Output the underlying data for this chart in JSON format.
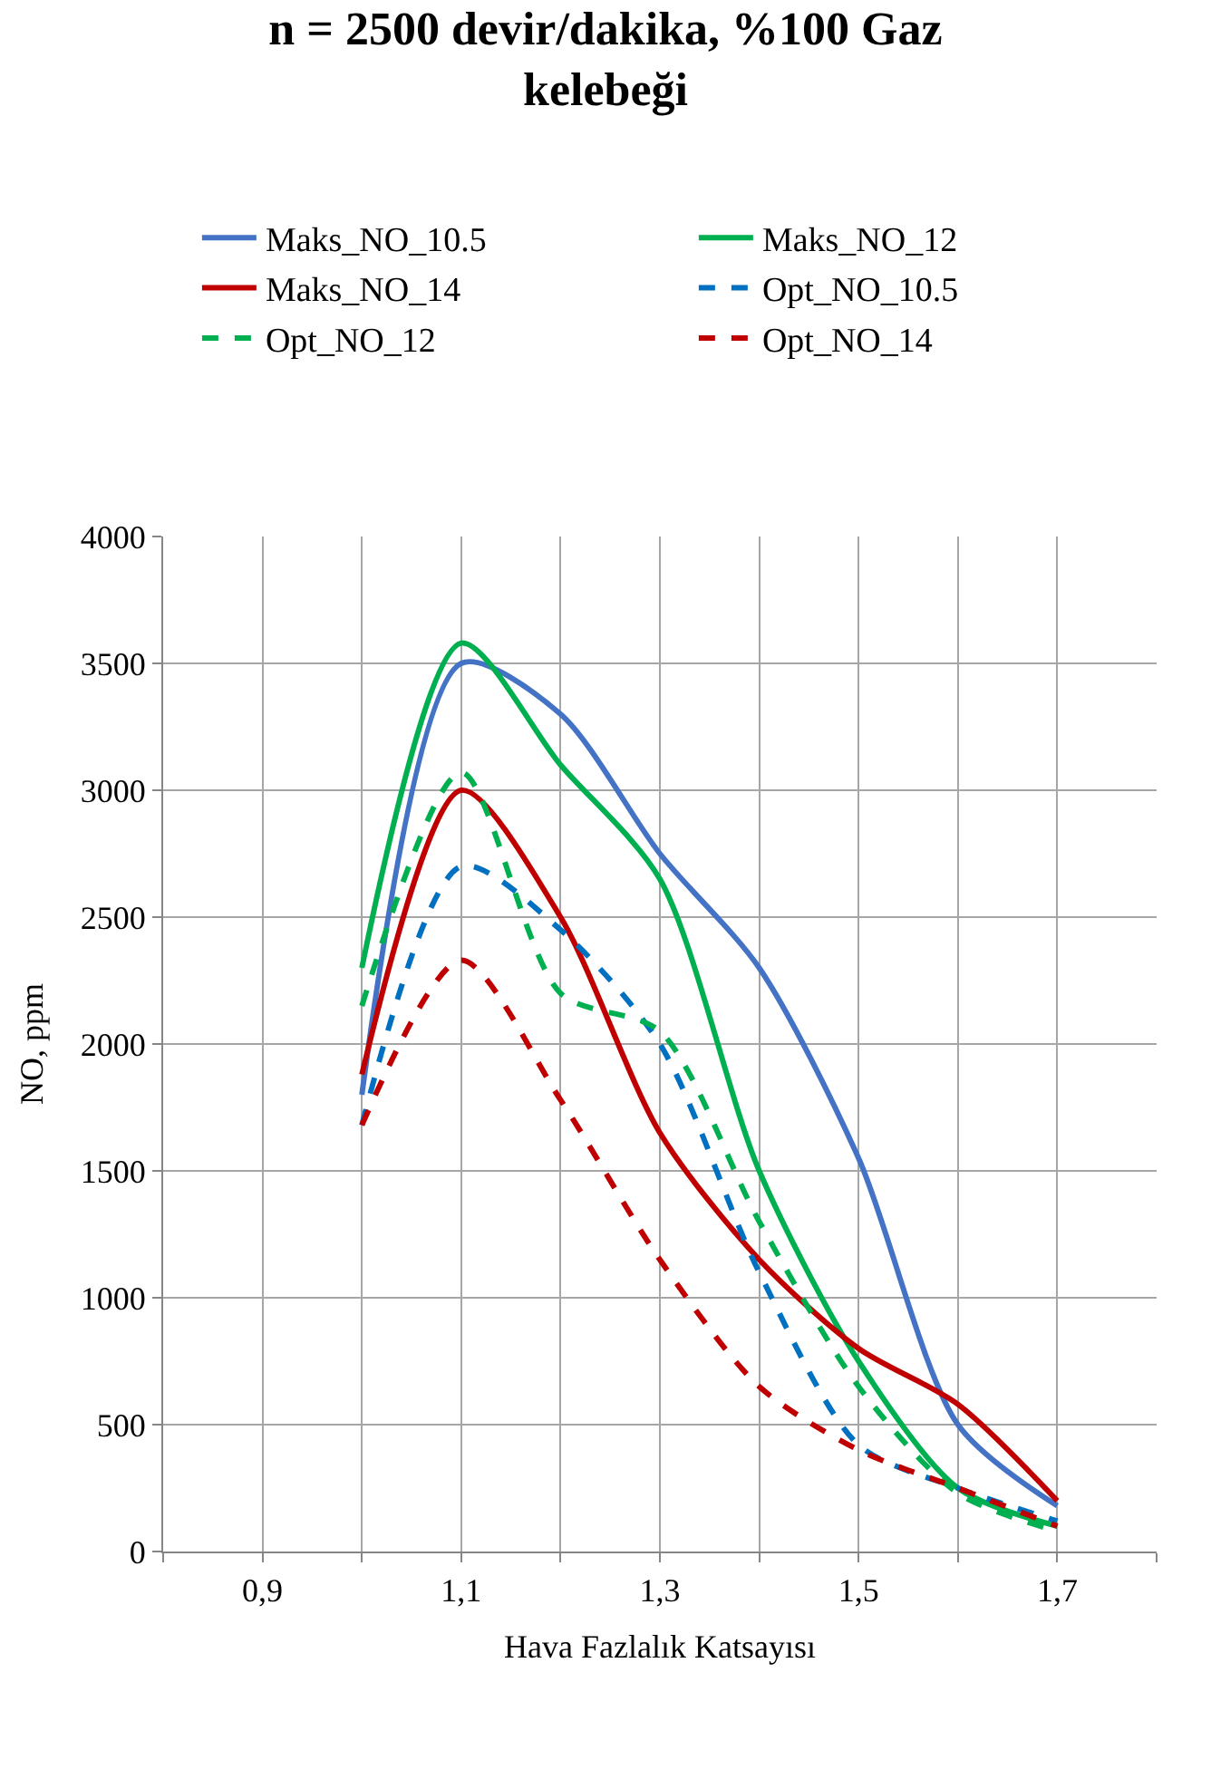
{
  "chart_data": {
    "type": "line",
    "title": "n = 2500 devir/dakika, %100 Gaz kelebeği",
    "xlabel": "Hava Fazlalık Katsayısı",
    "ylabel": "NO, ppm",
    "x": [
      1.0,
      1.1,
      1.2,
      1.3,
      1.4,
      1.5,
      1.6,
      1.7
    ],
    "series": [
      {
        "name": "Maks_NO_10.5",
        "color": "#4472c4",
        "line_style": "solid",
        "values": [
          1800,
          3500,
          3300,
          2750,
          2300,
          1550,
          500,
          180
        ]
      },
      {
        "name": "Maks_NO_12",
        "color": "#00b050",
        "line_style": "solid",
        "values": [
          2300,
          3580,
          3100,
          2650,
          1500,
          750,
          250,
          100
        ]
      },
      {
        "name": "Maks_NO_14",
        "color": "#c00000",
        "line_style": "solid",
        "values": [
          1880,
          3000,
          2500,
          1650,
          1150,
          800,
          580,
          200
        ]
      },
      {
        "name": "Opt_NO_10.5",
        "color": "#0070c0",
        "line_style": "dashed",
        "values": [
          1680,
          2700,
          2450,
          2000,
          1100,
          420,
          250,
          120
        ]
      },
      {
        "name": "Opt_NO_12",
        "color": "#00b050",
        "line_style": "dashed",
        "values": [
          2150,
          3070,
          2200,
          2050,
          1300,
          650,
          230,
          80
        ]
      },
      {
        "name": "Opt_NO_14",
        "color": "#c00000",
        "line_style": "dashed",
        "values": [
          1680,
          2330,
          1780,
          1150,
          650,
          400,
          250,
          100
        ]
      }
    ],
    "xlim": [
      0.8,
      1.8
    ],
    "xticks": [
      {
        "value": 0.8,
        "label": null
      },
      {
        "value": 0.9,
        "label": "0,9"
      },
      {
        "value": 1.0,
        "label": null
      },
      {
        "value": 1.1,
        "label": "1,1"
      },
      {
        "value": 1.2,
        "label": null
      },
      {
        "value": 1.3,
        "label": "1,3"
      },
      {
        "value": 1.4,
        "label": null
      },
      {
        "value": 1.5,
        "label": "1,5"
      },
      {
        "value": 1.6,
        "label": null
      },
      {
        "value": 1.7,
        "label": "1,7"
      },
      {
        "value": 1.8,
        "label": null
      }
    ],
    "ylim": [
      0,
      4000
    ],
    "yticks": [
      0,
      500,
      1000,
      1500,
      2000,
      2500,
      3000,
      3500,
      4000
    ],
    "grid": true,
    "legend": "top",
    "marker": "none"
  }
}
